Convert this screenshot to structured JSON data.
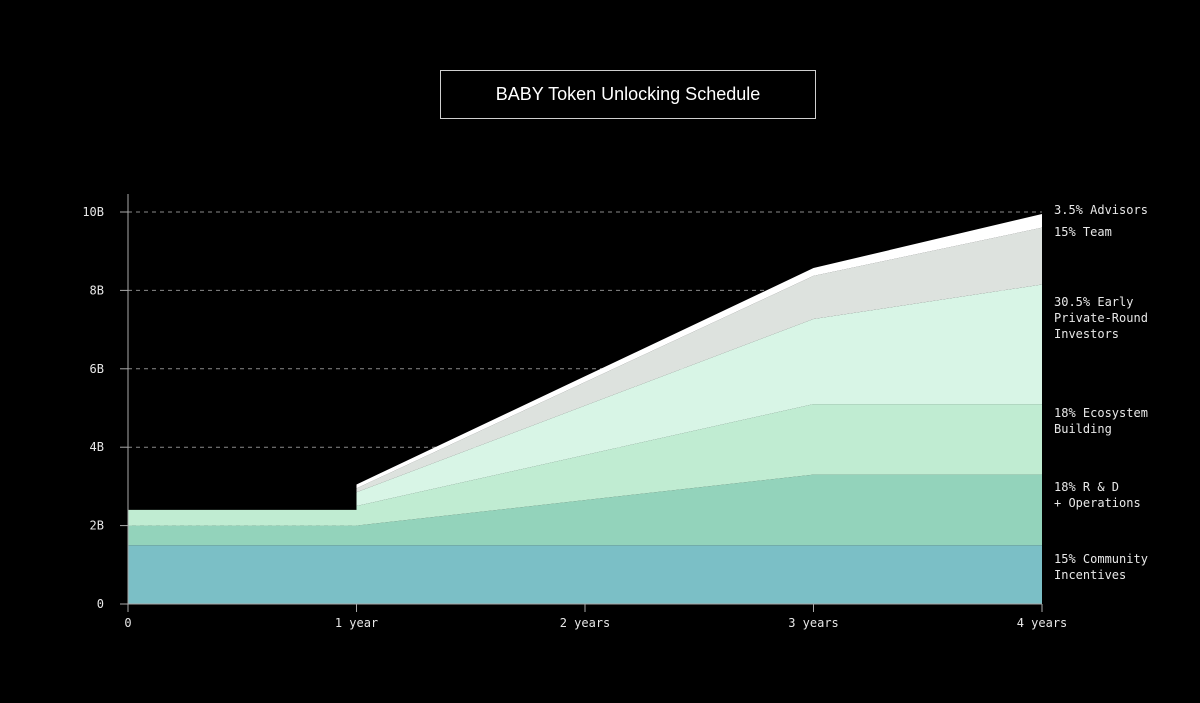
{
  "chart_data": {
    "type": "area",
    "stacked": true,
    "title": "BABY Token Unlocking Schedule",
    "xlabel": "",
    "ylabel": "",
    "x": [
      0,
      1,
      1,
      3,
      4
    ],
    "xlim": [
      0,
      4
    ],
    "ylim": [
      0,
      10
    ],
    "x_ticks": [
      {
        "v": 0,
        "label": "0"
      },
      {
        "v": 1,
        "label": "1 year"
      },
      {
        "v": 2,
        "label": "2 years"
      },
      {
        "v": 3,
        "label": "3 years"
      },
      {
        "v": 4,
        "label": "4 years"
      }
    ],
    "y_ticks": [
      {
        "v": 0,
        "label": "0"
      },
      {
        "v": 2,
        "label": "2B"
      },
      {
        "v": 4,
        "label": "4B"
      },
      {
        "v": 6,
        "label": "6B"
      },
      {
        "v": 8,
        "label": "8B"
      },
      {
        "v": 10,
        "label": "10B"
      }
    ],
    "grid": "dashed horizontal",
    "legend": "right",
    "series": [
      {
        "name": "15% Community Incentives",
        "lines": [
          "15% Community",
          "Incentives"
        ],
        "color": "#7bbfc6",
        "values": [
          1.5,
          1.5,
          1.5,
          1.5,
          1.5
        ]
      },
      {
        "name": "18% R & D + Operations",
        "lines": [
          "18% R & D",
          "+ Operations"
        ],
        "color": "#93d3bb",
        "values": [
          0.5,
          0.5,
          0.5,
          1.8,
          1.8
        ]
      },
      {
        "name": "18% Ecosystem Building",
        "lines": [
          "18% Ecosystem",
          "Building"
        ],
        "color": "#c0ecd2",
        "values": [
          0.4,
          0.4,
          0.5,
          1.8,
          1.8
        ]
      },
      {
        "name": "30.5% Early Private-Round Investors",
        "lines": [
          "30.5% Early",
          "Private-Round",
          "Investors"
        ],
        "color": "#d8f5e6",
        "values": [
          0,
          0,
          0.35,
          2.17,
          3.05
        ]
      },
      {
        "name": "15% Team",
        "lines": [
          "15% Team"
        ],
        "color": "#dde2de",
        "values": [
          0,
          0,
          0.1,
          1.1,
          1.45
        ]
      },
      {
        "name": "3.5% Advisors",
        "lines": [
          "3.5% Advisors"
        ],
        "color": "#ffffff",
        "values": [
          0,
          0,
          0.1,
          0.2,
          0.35
        ]
      }
    ]
  }
}
